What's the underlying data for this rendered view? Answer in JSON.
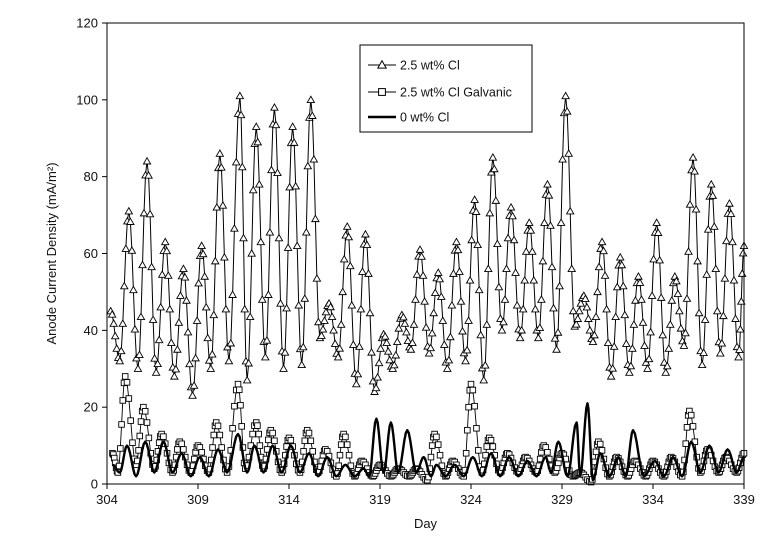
{
  "chart_data": {
    "type": "line",
    "xlabel": "Day",
    "ylabel": "Anode Current Density (mA/m²)",
    "xlim": [
      304,
      339
    ],
    "ylim": [
      0,
      120
    ],
    "x_ticks": [
      304,
      309,
      314,
      319,
      324,
      329,
      334,
      339
    ],
    "y_ticks": [
      0,
      20,
      40,
      60,
      80,
      100,
      120
    ],
    "grid": false,
    "legend_position": "top-center",
    "series": [
      {
        "name": "2.5 wt% Cl",
        "marker": "triangle-open",
        "color": "#000000",
        "peaks": [
          [
            304.2,
            45
          ],
          [
            305.2,
            71
          ],
          [
            306.2,
            84
          ],
          [
            307.2,
            63
          ],
          [
            308.2,
            56
          ],
          [
            309.2,
            62
          ],
          [
            310.2,
            86
          ],
          [
            311.3,
            101
          ],
          [
            312.2,
            93
          ],
          [
            313.2,
            98
          ],
          [
            314.2,
            93
          ],
          [
            315.2,
            100
          ],
          [
            316.2,
            47
          ],
          [
            317.2,
            67
          ],
          [
            318.2,
            65
          ],
          [
            319.2,
            39
          ],
          [
            320.2,
            44
          ],
          [
            321.2,
            61
          ],
          [
            322.2,
            55
          ],
          [
            323.2,
            63
          ],
          [
            324.2,
            74
          ],
          [
            325.2,
            85
          ],
          [
            326.2,
            72
          ],
          [
            327.2,
            68
          ],
          [
            328.2,
            78
          ],
          [
            329.2,
            101
          ],
          [
            330.2,
            49
          ],
          [
            331.2,
            63
          ],
          [
            332.2,
            59
          ],
          [
            333.2,
            54
          ],
          [
            334.2,
            68
          ],
          [
            335.2,
            54
          ],
          [
            336.2,
            85
          ],
          [
            337.2,
            78
          ],
          [
            338.2,
            73
          ],
          [
            339.0,
            62
          ]
        ],
        "troughs": [
          [
            304.7,
            32
          ],
          [
            305.7,
            30
          ],
          [
            306.7,
            29
          ],
          [
            307.7,
            28
          ],
          [
            308.7,
            23
          ],
          [
            309.7,
            30
          ],
          [
            310.7,
            32
          ],
          [
            311.7,
            27
          ],
          [
            312.7,
            33
          ],
          [
            313.7,
            30
          ],
          [
            314.7,
            31
          ],
          [
            315.7,
            38
          ],
          [
            316.7,
            33
          ],
          [
            317.7,
            26
          ],
          [
            318.7,
            24
          ],
          [
            319.7,
            30
          ],
          [
            320.7,
            35
          ],
          [
            321.7,
            34
          ],
          [
            322.7,
            30
          ],
          [
            323.7,
            32
          ],
          [
            324.7,
            27
          ],
          [
            325.7,
            40
          ],
          [
            326.7,
            38
          ],
          [
            327.7,
            38
          ],
          [
            328.7,
            35
          ],
          [
            329.7,
            41
          ],
          [
            330.7,
            37
          ],
          [
            331.7,
            28
          ],
          [
            332.7,
            29
          ],
          [
            333.7,
            30
          ],
          [
            334.7,
            29
          ],
          [
            335.7,
            36
          ],
          [
            336.7,
            31
          ],
          [
            337.7,
            34
          ],
          [
            338.7,
            33
          ]
        ]
      },
      {
        "name": "2.5 wt% Cl Galvanic",
        "marker": "square-open",
        "color": "#000000",
        "peaks": [
          [
            304.3,
            8
          ],
          [
            305.0,
            28
          ],
          [
            306.0,
            20
          ],
          [
            307.0,
            13
          ],
          [
            308.0,
            11
          ],
          [
            309.0,
            10
          ],
          [
            310.0,
            16
          ],
          [
            311.2,
            26
          ],
          [
            312.2,
            16
          ],
          [
            313.0,
            14
          ],
          [
            314.0,
            12
          ],
          [
            315.0,
            14
          ],
          [
            316.0,
            9
          ],
          [
            317.0,
            13
          ],
          [
            318.0,
            6
          ],
          [
            319.0,
            5
          ],
          [
            320.0,
            4
          ],
          [
            321.0,
            4
          ],
          [
            322.0,
            13
          ],
          [
            323.0,
            6
          ],
          [
            324.0,
            26
          ],
          [
            325.0,
            12
          ],
          [
            326.0,
            8
          ],
          [
            327.0,
            7
          ],
          [
            328.0,
            10
          ],
          [
            329.0,
            8
          ],
          [
            330.0,
            3
          ],
          [
            331.0,
            11
          ],
          [
            332.0,
            7
          ],
          [
            333.0,
            6
          ],
          [
            334.0,
            6
          ],
          [
            335.0,
            7
          ],
          [
            336.0,
            19
          ],
          [
            337.0,
            9
          ],
          [
            338.0,
            7
          ],
          [
            339.0,
            8
          ]
        ],
        "troughs": [
          [
            304.6,
            3
          ],
          [
            305.6,
            5
          ],
          [
            306.6,
            4
          ],
          [
            307.6,
            3
          ],
          [
            308.6,
            3
          ],
          [
            309.6,
            3
          ],
          [
            310.6,
            3
          ],
          [
            311.6,
            4
          ],
          [
            312.6,
            4
          ],
          [
            313.6,
            3
          ],
          [
            314.6,
            3
          ],
          [
            315.6,
            3
          ],
          [
            316.6,
            2
          ],
          [
            317.6,
            2
          ],
          [
            318.6,
            2
          ],
          [
            319.6,
            2
          ],
          [
            320.6,
            2
          ],
          [
            321.6,
            1
          ],
          [
            322.6,
            2
          ],
          [
            323.6,
            2
          ],
          [
            324.6,
            3
          ],
          [
            325.6,
            3
          ],
          [
            326.6,
            3
          ],
          [
            327.6,
            3
          ],
          [
            328.6,
            3
          ],
          [
            329.6,
            2
          ],
          [
            330.6,
            0.5
          ],
          [
            331.6,
            2
          ],
          [
            332.6,
            2
          ],
          [
            333.6,
            2
          ],
          [
            334.6,
            2
          ],
          [
            335.6,
            2
          ],
          [
            336.6,
            3
          ],
          [
            337.6,
            3
          ],
          [
            338.6,
            3
          ]
        ]
      },
      {
        "name": "0 wt% Cl",
        "marker": "none",
        "color": "#000000",
        "line_width": 2.4,
        "peaks": [
          [
            304.3,
            5
          ],
          [
            305.1,
            10
          ],
          [
            306.1,
            11
          ],
          [
            307.1,
            11
          ],
          [
            308.1,
            8
          ],
          [
            309.1,
            7
          ],
          [
            310.1,
            9
          ],
          [
            311.2,
            13
          ],
          [
            312.1,
            10
          ],
          [
            313.1,
            10
          ],
          [
            314.1,
            10
          ],
          [
            315.1,
            8
          ],
          [
            316.1,
            7
          ],
          [
            317.1,
            5
          ],
          [
            318.1,
            4
          ],
          [
            318.8,
            17
          ],
          [
            319.6,
            16
          ],
          [
            320.5,
            14
          ],
          [
            321.4,
            7
          ],
          [
            322.1,
            5
          ],
          [
            323.1,
            5
          ],
          [
            324.1,
            7
          ],
          [
            325.1,
            8
          ],
          [
            326.1,
            7
          ],
          [
            327.1,
            6
          ],
          [
            328.1,
            7
          ],
          [
            328.8,
            11
          ],
          [
            329.8,
            16
          ],
          [
            330.4,
            21
          ],
          [
            331.1,
            8
          ],
          [
            332.1,
            7
          ],
          [
            332.9,
            14
          ],
          [
            334.1,
            6
          ],
          [
            335.1,
            7
          ],
          [
            336.1,
            11
          ],
          [
            337.1,
            10
          ],
          [
            338.1,
            9
          ],
          [
            339.0,
            7
          ]
        ],
        "troughs": [
          [
            304.7,
            3
          ],
          [
            305.6,
            2
          ],
          [
            306.6,
            3
          ],
          [
            307.6,
            3
          ],
          [
            308.6,
            2
          ],
          [
            309.6,
            2
          ],
          [
            310.6,
            3
          ],
          [
            311.7,
            3
          ],
          [
            312.6,
            3
          ],
          [
            313.6,
            3
          ],
          [
            314.6,
            3
          ],
          [
            315.6,
            2
          ],
          [
            316.6,
            2
          ],
          [
            317.6,
            2
          ],
          [
            318.4,
            2
          ],
          [
            319.2,
            3
          ],
          [
            320.0,
            3
          ],
          [
            321.0,
            3
          ],
          [
            321.8,
            2
          ],
          [
            322.6,
            2
          ],
          [
            323.6,
            2
          ],
          [
            324.6,
            2
          ],
          [
            325.6,
            2
          ],
          [
            326.6,
            2
          ],
          [
            327.6,
            2
          ],
          [
            328.4,
            3
          ],
          [
            329.3,
            2
          ],
          [
            330.0,
            2
          ],
          [
            330.7,
            1
          ],
          [
            331.6,
            2
          ],
          [
            332.5,
            2
          ],
          [
            333.5,
            2
          ],
          [
            334.6,
            2
          ],
          [
            335.6,
            2
          ],
          [
            336.6,
            3
          ],
          [
            337.6,
            3
          ],
          [
            338.6,
            3
          ]
        ]
      }
    ]
  }
}
